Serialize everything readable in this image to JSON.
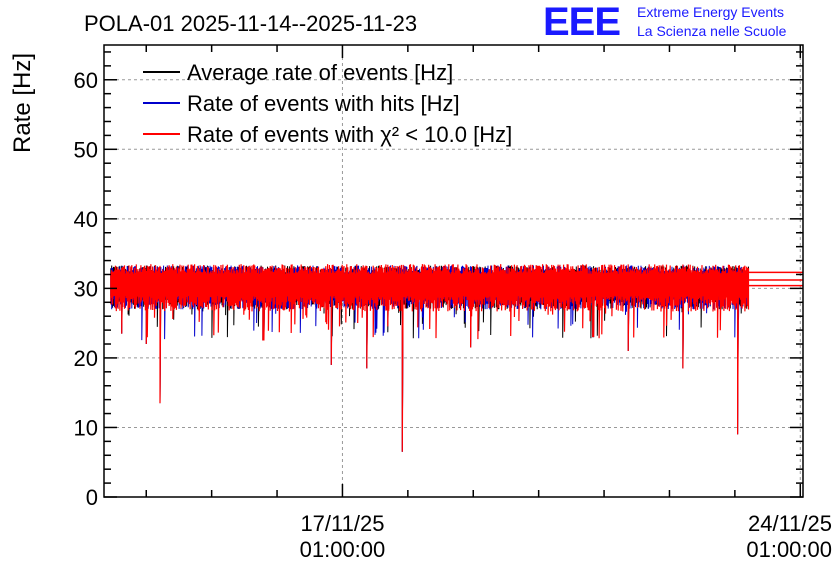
{
  "chart_data": {
    "type": "line",
    "title": "POLA-01 2025-11-14--2025-11-23",
    "ylabel": "Rate [Hz]",
    "xlabel": "",
    "ylim": [
      0,
      65
    ],
    "y_ticks": [
      0,
      10,
      20,
      30,
      40,
      50,
      60
    ],
    "x_ticks": [
      {
        "date": "17/11/25",
        "time": "01:00:00"
      },
      {
        "date": "24/11/25",
        "time": "01:00:00"
      }
    ],
    "x_range_days": [
      "2025-11-13T09:30",
      "2025-11-24T02:00"
    ],
    "grid": true,
    "legend_position": "top-left",
    "series": [
      {
        "name": "Average rate of events [Hz]",
        "color": "#000000",
        "level": 30.5
      },
      {
        "name": "Rate of events with hits [Hz]",
        "color": "#0000cc",
        "level": 30.5
      },
      {
        "name": "Rate of events with χ² < 10.0 [Hz]",
        "color": "#ff0000",
        "level": 30.5
      }
    ],
    "dips": [
      {
        "date": "2025-11-14T06:00",
        "value": 13.5
      },
      {
        "date": "2025-11-17T23:00",
        "value": 6.5
      },
      {
        "date": "2025-11-23T02:00",
        "value": 9.0
      },
      {
        "date": "2025-11-14T01:00",
        "value": 22.0
      },
      {
        "date": "2025-11-15T20:00",
        "value": 22.5
      },
      {
        "date": "2025-11-16T21:00",
        "value": 19.0
      },
      {
        "date": "2025-11-17T10:00",
        "value": 18.5
      },
      {
        "date": "2025-11-19T00:00",
        "value": 21.5
      },
      {
        "date": "2025-11-20T21:00",
        "value": 23.0
      },
      {
        "date": "2025-11-21T10:00",
        "value": 21.0
      },
      {
        "date": "2025-11-22T06:00",
        "value": 18.5
      },
      {
        "date": "2025-11-13T16:00",
        "value": 23.5
      }
    ]
  },
  "logo": {
    "mark": "EEE",
    "line1": "Extreme Energy Events",
    "line2": "La Scienza nelle Scuole",
    "color": "#1a1aff"
  }
}
